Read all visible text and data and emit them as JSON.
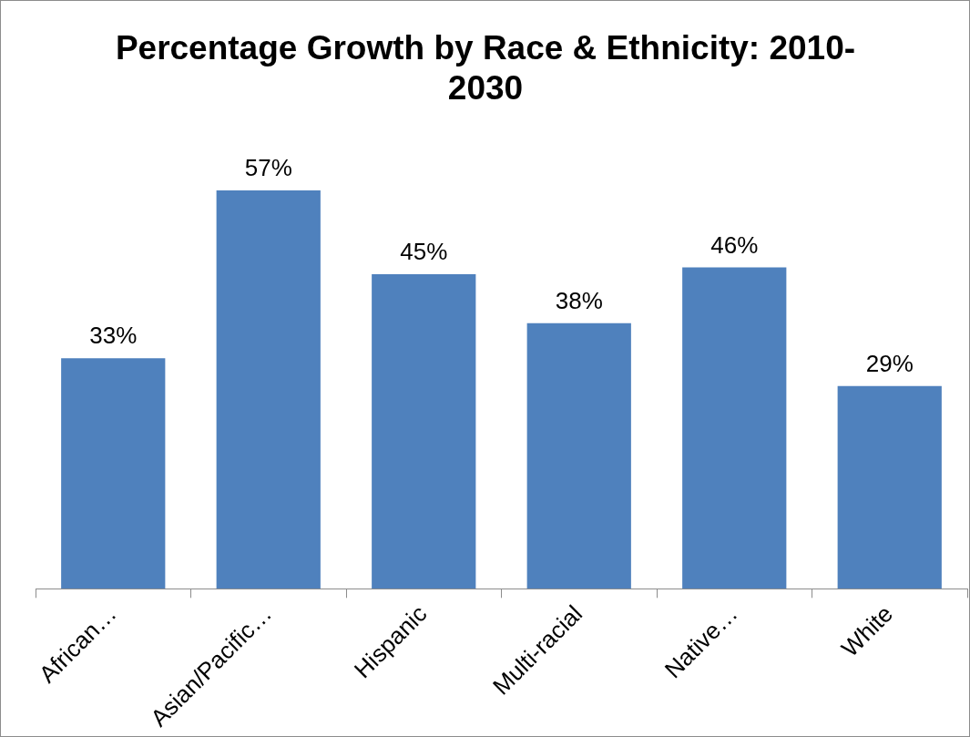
{
  "chart_data": {
    "type": "bar",
    "title": "Percentage Growth by Race & Ethnicity: 2010-2030",
    "categories": [
      "African…",
      "Asian/Pacific…",
      "Hispanic",
      "Multi-racial",
      "Native…",
      "White"
    ],
    "values": [
      33,
      57,
      45,
      38,
      46,
      29
    ],
    "value_labels": [
      "33%",
      "57%",
      "45%",
      "38%",
      "46%",
      "29%"
    ],
    "color": "#4f81bd",
    "tick_labels": "x",
    "grid": false,
    "legend": false
  }
}
